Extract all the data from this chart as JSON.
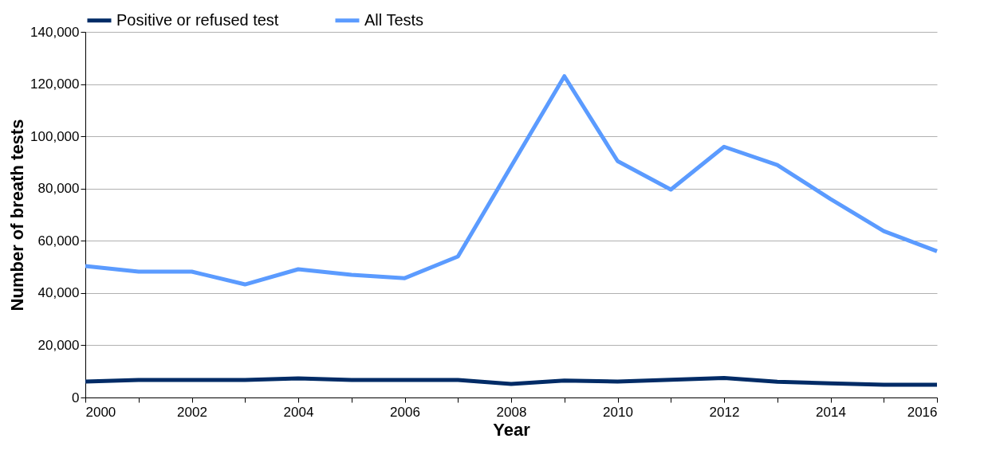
{
  "chart_data": {
    "type": "line",
    "xlabel": "Year",
    "ylabel": "Number of breath tests",
    "x": [
      2000,
      2001,
      2002,
      2003,
      2004,
      2005,
      2006,
      2007,
      2008,
      2009,
      2010,
      2011,
      2012,
      2013,
      2014,
      2015,
      2016
    ],
    "series": [
      {
        "name": "Positive or refused test",
        "color": "#002b66",
        "values": [
          6100,
          6700,
          6700,
          6700,
          7300,
          6700,
          6700,
          6700,
          5200,
          6500,
          6100,
          6800,
          7500,
          6000,
          5400,
          4900,
          4900
        ]
      },
      {
        "name": "All Tests",
        "color": "#5b9bff",
        "values": [
          50300,
          48200,
          48200,
          43300,
          49100,
          47000,
          45700,
          54000,
          88500,
          123000,
          90500,
          79600,
          96000,
          89000,
          76000,
          63700,
          56000
        ]
      }
    ],
    "xlim": [
      2000,
      2016
    ],
    "xticks": [
      2000,
      {
        "value": 2001,
        "label": null
      },
      2002,
      {
        "value": 2003,
        "label": null
      },
      2004,
      {
        "value": 2005,
        "label": null
      },
      2006,
      {
        "value": 2007,
        "label": null
      },
      2008,
      {
        "value": 2009,
        "label": null
      },
      2010,
      {
        "value": 2011,
        "label": null
      },
      2012,
      {
        "value": 2013,
        "label": null
      },
      2014,
      {
        "value": 2015,
        "label": null
      },
      2016
    ],
    "ylim": [
      0,
      140000
    ],
    "yticks": [
      0,
      {
        "value": 20000,
        "label": "20,000"
      },
      {
        "value": 40000,
        "label": "40,000"
      },
      {
        "value": 60000,
        "label": "60,000"
      },
      {
        "value": 80000,
        "label": "80,000"
      },
      {
        "value": 100000,
        "label": "100,000"
      },
      {
        "value": 120000,
        "label": "120,000"
      },
      {
        "value": 140000,
        "label": "140,000"
      }
    ],
    "grid": "y",
    "legend": "top",
    "marker": "none",
    "line_style": "solid"
  }
}
